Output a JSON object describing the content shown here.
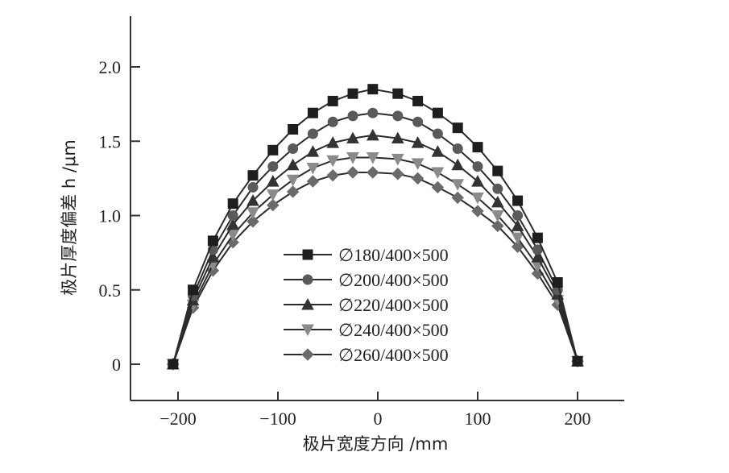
{
  "chart_data": {
    "type": "line",
    "title": "",
    "xlabel": "极片宽度方向 /mm",
    "ylabel": "极片厚度偏差 h /μm",
    "xlim": [
      -250,
      250
    ],
    "ylim": [
      -0.25,
      2.3
    ],
    "xticks": [
      -200,
      -100,
      0,
      100,
      200
    ],
    "xtick_labels": [
      "−200",
      "−100",
      "0",
      "100",
      "200"
    ],
    "yticks": [
      0,
      0.5,
      1.0,
      1.5,
      2.0
    ],
    "ytick_labels": [
      "0",
      "0.5",
      "1.0",
      "1.5",
      "2.0"
    ],
    "grid": false,
    "legend_position": "center",
    "x": [
      -205,
      -185,
      -165,
      -145,
      -125,
      -105,
      -85,
      -65,
      -45,
      -25,
      -5,
      20,
      40,
      60,
      80,
      100,
      120,
      140,
      160,
      180,
      200
    ],
    "series": [
      {
        "name": "∅180/400×500",
        "marker": "square",
        "values": [
          0.0,
          0.5,
          0.83,
          1.08,
          1.27,
          1.44,
          1.58,
          1.69,
          1.77,
          1.82,
          1.85,
          1.82,
          1.77,
          1.69,
          1.59,
          1.46,
          1.3,
          1.1,
          0.85,
          0.55,
          0.02
        ]
      },
      {
        "name": "∅200/400×500",
        "marker": "circle",
        "values": [
          0.0,
          0.46,
          0.77,
          1.0,
          1.19,
          1.33,
          1.45,
          1.55,
          1.63,
          1.67,
          1.69,
          1.67,
          1.63,
          1.55,
          1.45,
          1.33,
          1.18,
          1.0,
          0.77,
          0.5,
          0.02
        ]
      },
      {
        "name": "∅220/400×500",
        "marker": "triangle-up",
        "values": [
          0.0,
          0.43,
          0.72,
          0.94,
          1.1,
          1.23,
          1.34,
          1.43,
          1.49,
          1.52,
          1.54,
          1.52,
          1.49,
          1.43,
          1.34,
          1.23,
          1.09,
          0.93,
          0.72,
          0.47,
          0.02
        ]
      },
      {
        "name": "∅240/400×500",
        "marker": "triangle-down",
        "values": [
          0.0,
          0.4,
          0.67,
          0.87,
          1.02,
          1.14,
          1.24,
          1.32,
          1.37,
          1.39,
          1.39,
          1.38,
          1.35,
          1.29,
          1.21,
          1.12,
          1.0,
          0.85,
          0.66,
          0.43,
          0.02
        ]
      },
      {
        "name": "∅260/400×500",
        "marker": "diamond",
        "values": [
          0.0,
          0.38,
          0.63,
          0.82,
          0.96,
          1.07,
          1.16,
          1.23,
          1.27,
          1.29,
          1.29,
          1.28,
          1.25,
          1.19,
          1.12,
          1.03,
          0.93,
          0.79,
          0.61,
          0.4,
          0.02
        ]
      }
    ],
    "colors": {
      "line": "#2b2b2b",
      "markers": [
        "#1e1e1e",
        "#5a5a5a",
        "#333333",
        "#8a8a8a",
        "#6a6a6a"
      ]
    }
  }
}
